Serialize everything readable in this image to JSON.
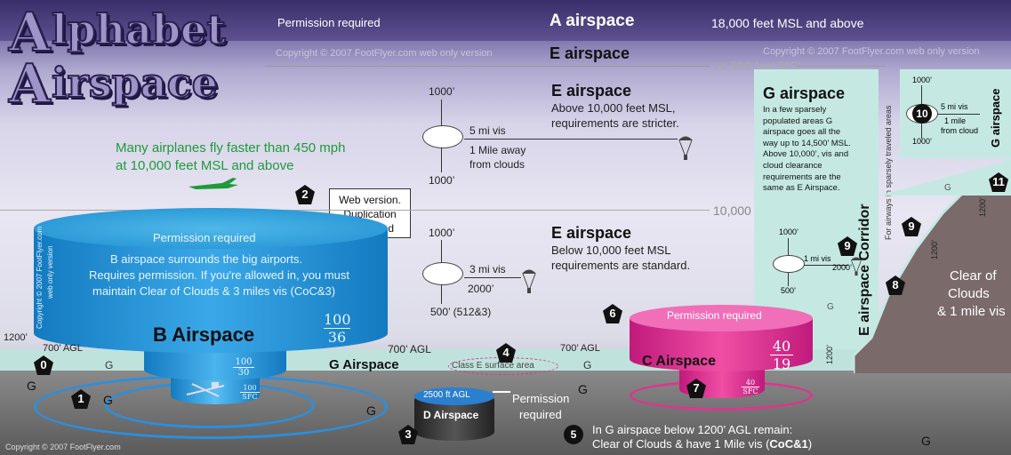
{
  "title": {
    "line1": "lphabet",
    "line2": "irspace",
    "letter": "A"
  },
  "a_airspace": {
    "permission": "Permission required",
    "name": "A airspace",
    "altitude": "18,000 feet MSL and above"
  },
  "copyright_web": "Copyright © 2007 FootFlyer.com web only version",
  "e_upper": {
    "name": "E airspace",
    "line": "14,500 feet MSL"
  },
  "e_mid": {
    "name": "E airspace",
    "desc1": "Above 10,000 feet MSL,",
    "desc2": "requirements are stricter.",
    "top": "1000’",
    "vis": "5 mi vis",
    "away1": "1 Mile away",
    "away2": "from clouds",
    "bottom": "1000’"
  },
  "speed_note": {
    "line1": "Many airplanes fly faster than 450 mph",
    "line2": "at 10,000  feet MSL and above"
  },
  "web_version": {
    "l1": "Web version.",
    "l2": "Duplication",
    "l3": "Prohibited"
  },
  "line_10000": "10,000 feet MSL",
  "e_low": {
    "name": "E airspace",
    "desc1": "Below 10,000 feet MSL",
    "desc2": "requirements are standard.",
    "top": "1000’",
    "vis": "3 mi vis",
    "side": "2000’",
    "bottom": "500’  (512&3)"
  },
  "g_high": {
    "name": "G airspace",
    "desc": [
      "In a few sparsely",
      "populated areas G",
      "airspace goes all the",
      "way up to 14,500’ MSL.",
      "Above 10,000’, vis and",
      "cloud clearance",
      "requirements are the",
      "same as E Airspace."
    ]
  },
  "corridor": {
    "title": "E airspace Corridor",
    "sub": "For airways in sparsely traveled areas"
  },
  "box10": {
    "top": "1000’",
    "vis": "5 mi vis",
    "d1": "1 mile",
    "d2": "from cloud",
    "bottom": "1000’",
    "g_label": "G airspace"
  },
  "box9": {
    "top": "1000’",
    "vis": "1 mi vis",
    "side": "2000’",
    "bottom": "500’"
  },
  "b_airspace": {
    "permission": "Permission required",
    "desc1": "B airspace surrounds the big airports.",
    "desc2": "Requires permission. If you're allowed in, you must",
    "desc3": "maintain Clear of Clouds & 3 miles vis (CoC&3)",
    "name": "B Airspace",
    "frac_top": "100",
    "frac_bot": "36",
    "mid_top": "100",
    "mid_bot": "30",
    "low_top": "100",
    "low_bot": "SFC",
    "side": "Copyright © 2007 FootFlyer.com",
    "side2": "web only version"
  },
  "c_airspace": {
    "permission": "Permission required",
    "name": "C Airspace",
    "frac_top": "40",
    "frac_bot": "19",
    "low_top": "40",
    "low_bot": "SFC"
  },
  "d_airspace": {
    "agl": "2500 ft AGL",
    "name": "D Airspace",
    "permission1": "Permission",
    "permission2": "required"
  },
  "agl_labels": {
    "left": "700’ AGL",
    "mid": "700’ AGL",
    "right": "700’ AGL",
    "alt1200": "1200’",
    "alt1200b": "1200’",
    "alt1200c": "1200’",
    "alt1200d": "1200’"
  },
  "g_airspace": {
    "name": "G Airspace",
    "glyph": "G"
  },
  "class_e_surface": "Class E surface area",
  "clear_note": {
    "l1": "Clear of",
    "l2": "Clouds",
    "l3": "& 1 mile vis"
  },
  "note5": {
    "l1": "In G airspace below 1200’ AGL remain:",
    "l2a": "Clear of Clouds & have 1 Mile vis (",
    "l2b": "CoC&1",
    "l2c": ")"
  },
  "footer": "Copyright © 2007 FootFlyer.com",
  "badges": [
    "0",
    "1",
    "2",
    "3",
    "4",
    "5",
    "6",
    "7",
    "8",
    "9",
    "10",
    "11"
  ]
}
